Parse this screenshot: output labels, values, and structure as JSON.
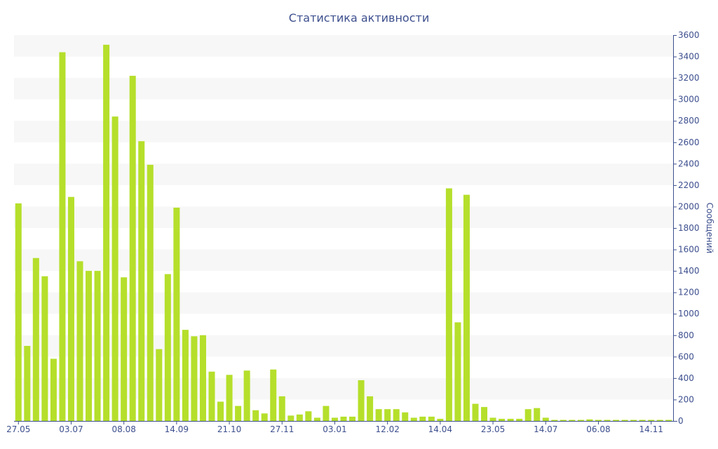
{
  "chart_data": {
    "type": "bar",
    "title": "Статистика активности",
    "ylabel": "Сообщений",
    "ylim": [
      0,
      3600
    ],
    "yticks": [
      0,
      200,
      400,
      600,
      800,
      1000,
      1200,
      1400,
      1600,
      1800,
      2000,
      2200,
      2400,
      2600,
      2800,
      3000,
      3200,
      3400,
      3600
    ],
    "y_axis_side": "right",
    "grid": "alternating horizontal bands",
    "x_tick_labels": [
      {
        "index": 0,
        "label": "27.05"
      },
      {
        "index": 6,
        "label": "03.07"
      },
      {
        "index": 12,
        "label": "08.08"
      },
      {
        "index": 18,
        "label": "14.09"
      },
      {
        "index": 24,
        "label": "21.10"
      },
      {
        "index": 30,
        "label": "27.11"
      },
      {
        "index": 36,
        "label": "03.01"
      },
      {
        "index": 42,
        "label": "12.02"
      },
      {
        "index": 48,
        "label": "14.04"
      },
      {
        "index": 54,
        "label": "23.05"
      },
      {
        "index": 60,
        "label": "14.07"
      },
      {
        "index": 66,
        "label": "06.08"
      },
      {
        "index": 72,
        "label": "14.11"
      }
    ],
    "values": [
      2030,
      700,
      1520,
      1350,
      580,
      3440,
      2090,
      1490,
      1400,
      1400,
      3510,
      2840,
      1340,
      3220,
      2610,
      2390,
      670,
      1370,
      1990,
      850,
      790,
      800,
      460,
      180,
      430,
      140,
      470,
      100,
      70,
      480,
      230,
      50,
      60,
      90,
      30,
      140,
      30,
      40,
      40,
      380,
      230,
      110,
      110,
      110,
      80,
      30,
      40,
      40,
      20,
      2170,
      920,
      2110,
      160,
      130,
      30,
      20,
      20,
      20,
      110,
      120,
      30,
      10,
      10,
      10,
      10,
      15,
      10,
      10,
      10,
      10,
      10,
      10,
      10,
      10,
      10
    ],
    "colors": {
      "bar": "#b5df2b",
      "text": "#3d4f8e",
      "band": "#f7f7f7",
      "axis": "#3d4f8e"
    }
  }
}
